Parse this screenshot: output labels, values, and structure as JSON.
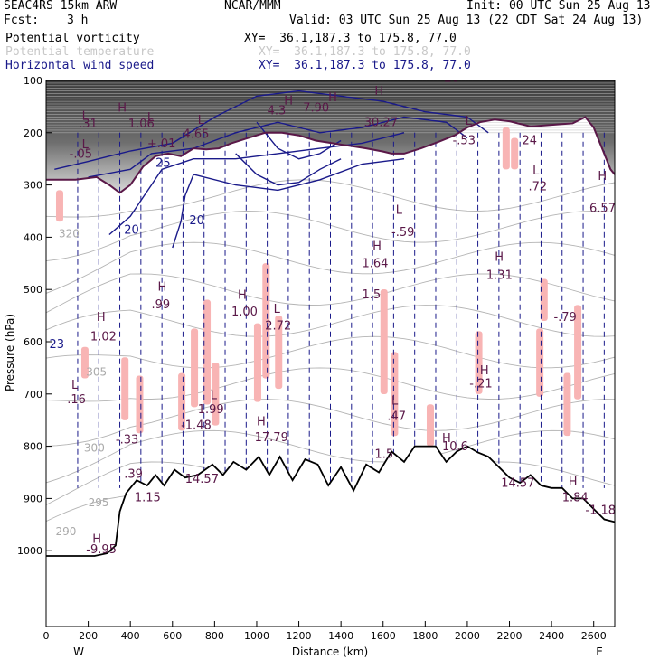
{
  "header": {
    "model": "SEAC4RS 15km ARW",
    "institution": "NCAR/MMM",
    "init": "Init: 00 UTC Sun 25 Aug 13",
    "fcst_label": "Fcst:",
    "fcst_value": "3 h",
    "valid": "Valid: 03 UTC Sun 25 Aug 13 (22 CDT Sat 24 Aug 13)"
  },
  "legend": [
    {
      "name": "Potential vorticity",
      "xy": "XY=  36.1,187.3 to 175.8, 77.0",
      "color": "#000000"
    },
    {
      "name": "Potential temperature",
      "xy": "XY=  36.1,187.3 to 175.8, 77.0",
      "color": "#c8c8c8"
    },
    {
      "name": "Horizontal wind speed",
      "xy": "XY=  36.1,187.3 to 175.8, 77.0",
      "color": "#1a1a8a"
    }
  ],
  "colors": {
    "pv_fill_high": "#3a3a3a",
    "pv_fill_mid": "#9a9a9a",
    "pv_pink": "#f8b4b4",
    "pv_contour": "#5a1848",
    "pv_label": "#5a1848",
    "theta": "#b4b4b4",
    "wind": "#1a1a8a",
    "terrain": "#000000"
  },
  "chart_data": {
    "type": "cross-section",
    "xlabel": "Distance (km)",
    "ylabel": "Pressure (hPa)",
    "xlim": [
      0,
      2700
    ],
    "ylim": [
      1050,
      100
    ],
    "x_ticks": [
      0,
      200,
      400,
      600,
      800,
      1000,
      1200,
      1400,
      1600,
      1800,
      2000,
      2200,
      2400,
      2600
    ],
    "y_ticks": [
      100,
      200,
      300,
      400,
      500,
      600,
      700,
      800,
      900,
      1000
    ],
    "x_end_labels": {
      "left": "W",
      "right": "E"
    },
    "terrain_surface": [
      [
        0,
        1010
      ],
      [
        230,
        1010
      ],
      [
        290,
        1005
      ],
      [
        330,
        990
      ],
      [
        350,
        925
      ],
      [
        380,
        890
      ],
      [
        430,
        865
      ],
      [
        480,
        875
      ],
      [
        520,
        855
      ],
      [
        560,
        875
      ],
      [
        610,
        845
      ],
      [
        660,
        860
      ],
      [
        720,
        855
      ],
      [
        790,
        835
      ],
      [
        840,
        855
      ],
      [
        890,
        830
      ],
      [
        950,
        845
      ],
      [
        1010,
        820
      ],
      [
        1060,
        855
      ],
      [
        1110,
        820
      ],
      [
        1170,
        865
      ],
      [
        1230,
        825
      ],
      [
        1290,
        835
      ],
      [
        1340,
        875
      ],
      [
        1400,
        840
      ],
      [
        1460,
        885
      ],
      [
        1520,
        835
      ],
      [
        1580,
        850
      ],
      [
        1640,
        810
      ],
      [
        1700,
        830
      ],
      [
        1750,
        800
      ],
      [
        1800,
        800
      ],
      [
        1850,
        800
      ],
      [
        1900,
        830
      ],
      [
        1950,
        810
      ],
      [
        2000,
        800
      ],
      [
        2050,
        812
      ],
      [
        2100,
        820
      ],
      [
        2150,
        840
      ],
      [
        2200,
        860
      ],
      [
        2250,
        870
      ],
      [
        2300,
        855
      ],
      [
        2350,
        875
      ],
      [
        2400,
        880
      ],
      [
        2450,
        880
      ],
      [
        2500,
        900
      ],
      [
        2550,
        900
      ],
      [
        2600,
        920
      ],
      [
        2650,
        940
      ],
      [
        2700,
        945
      ]
    ],
    "tropopause_pv": [
      [
        0,
        290
      ],
      [
        80,
        290
      ],
      [
        140,
        290
      ],
      [
        240,
        285
      ],
      [
        300,
        300
      ],
      [
        350,
        315
      ],
      [
        400,
        300
      ],
      [
        460,
        265
      ],
      [
        520,
        245
      ],
      [
        580,
        240
      ],
      [
        640,
        245
      ],
      [
        700,
        230
      ],
      [
        760,
        232
      ],
      [
        820,
        230
      ],
      [
        880,
        220
      ],
      [
        960,
        210
      ],
      [
        1040,
        200
      ],
      [
        1120,
        200
      ],
      [
        1200,
        205
      ],
      [
        1280,
        215
      ],
      [
        1360,
        220
      ],
      [
        1440,
        225
      ],
      [
        1520,
        230
      ],
      [
        1600,
        236
      ],
      [
        1640,
        240
      ],
      [
        1700,
        240
      ],
      [
        1780,
        230
      ],
      [
        1860,
        218
      ],
      [
        1940,
        205
      ],
      [
        2000,
        190
      ],
      [
        2060,
        180
      ],
      [
        2130,
        175
      ],
      [
        2200,
        178
      ],
      [
        2300,
        188
      ],
      [
        2400,
        185
      ],
      [
        2500,
        182
      ],
      [
        2560,
        170
      ],
      [
        2600,
        190
      ],
      [
        2640,
        230
      ],
      [
        2680,
        270
      ],
      [
        2700,
        280
      ]
    ],
    "theta_contour_labels": [
      {
        "text": "320",
        "x": 60,
        "p": 400
      },
      {
        "text": "305",
        "x": 190,
        "p": 665
      },
      {
        "text": "300",
        "x": 180,
        "p": 810
      },
      {
        "text": "295",
        "x": 200,
        "p": 915
      },
      {
        "text": "290",
        "x": 45,
        "p": 970
      }
    ],
    "wind_speed_labels": [
      {
        "text": "25",
        "x": 520,
        "p": 265
      },
      {
        "text": "20",
        "x": 370,
        "p": 393
      },
      {
        "text": "20",
        "x": 680,
        "p": 375
      },
      {
        "text": "23",
        "x": 15,
        "p": 612
      }
    ],
    "pv_labels": [
      {
        "text": "L",
        "x": 170,
        "p": 175
      },
      {
        "text": ".31",
        "x": 155,
        "p": 190
      },
      {
        "text": "H",
        "x": 340,
        "p": 160
      },
      {
        "text": "1.06",
        "x": 390,
        "p": 190
      },
      {
        "text": "L",
        "x": 480,
        "p": 178
      },
      {
        "text": "+.01",
        "x": 480,
        "p": 228
      },
      {
        "text": "L",
        "x": 170,
        "p": 230
      },
      {
        "text": "-.05",
        "x": 110,
        "p": 248
      },
      {
        "text": "L",
        "x": 720,
        "p": 183
      },
      {
        "text": "4.65",
        "x": 650,
        "p": 210
      },
      {
        "text": "H",
        "x": 1130,
        "p": 146
      },
      {
        "text": "4.3",
        "x": 1050,
        "p": 165
      },
      {
        "text": "H",
        "x": 1340,
        "p": 140
      },
      {
        "text": "7.90",
        "x": 1220,
        "p": 160
      },
      {
        "text": "H",
        "x": 1560,
        "p": 128
      },
      {
        "text": "30.27",
        "x": 1510,
        "p": 187
      },
      {
        "text": "26",
        "x": 1890,
        "p": 103
      },
      {
        "text": "L",
        "x": 1990,
        "p": 185
      },
      {
        "text": "-.53",
        "x": 1930,
        "p": 222
      },
      {
        "text": "24",
        "x": 2260,
        "p": 222
      },
      {
        "text": "L",
        "x": 2310,
        "p": 280
      },
      {
        "text": ".72",
        "x": 2290,
        "p": 310
      },
      {
        "text": "H",
        "x": 2620,
        "p": 290
      },
      {
        "text": "6.57",
        "x": 2580,
        "p": 352
      },
      {
        "text": "L",
        "x": 1660,
        "p": 355
      },
      {
        "text": "-.59",
        "x": 1640,
        "p": 398
      },
      {
        "text": "H",
        "x": 1550,
        "p": 424
      },
      {
        "text": "1.64",
        "x": 1500,
        "p": 457
      },
      {
        "text": "1.5",
        "x": 1500,
        "p": 517
      },
      {
        "text": "H",
        "x": 2130,
        "p": 445
      },
      {
        "text": "1.31",
        "x": 2090,
        "p": 480
      },
      {
        "text": "H",
        "x": 530,
        "p": 502
      },
      {
        "text": ".99",
        "x": 500,
        "p": 536
      },
      {
        "text": "H",
        "x": 910,
        "p": 518
      },
      {
        "text": "1.00",
        "x": 880,
        "p": 550
      },
      {
        "text": "L",
        "x": 1080,
        "p": 545
      },
      {
        "text": "2.72",
        "x": 1040,
        "p": 577
      },
      {
        "text": "H",
        "x": 240,
        "p": 560
      },
      {
        "text": "1.02",
        "x": 210,
        "p": 597
      },
      {
        "text": "-.79",
        "x": 2410,
        "p": 560
      },
      {
        "text": "H",
        "x": 2060,
        "p": 662
      },
      {
        "text": "-.21",
        "x": 2010,
        "p": 687
      },
      {
        "text": "L",
        "x": 120,
        "p": 690
      },
      {
        "text": ".16",
        "x": 100,
        "p": 718
      },
      {
        "text": "L",
        "x": 780,
        "p": 710
      },
      {
        "text": "-1.99",
        "x": 700,
        "p": 737
      },
      {
        "text": "-1.48",
        "x": 640,
        "p": 767
      },
      {
        "text": "H",
        "x": 1000,
        "p": 760
      },
      {
        "text": "17.79",
        "x": 990,
        "p": 790
      },
      {
        "text": "L",
        "x": 1640,
        "p": 720
      },
      {
        "text": ".47",
        "x": 1620,
        "p": 750
      },
      {
        "text": "-.33",
        "x": 330,
        "p": 795
      },
      {
        "text": "H",
        "x": 1880,
        "p": 792
      },
      {
        "text": "10.6",
        "x": 1880,
        "p": 808
      },
      {
        "text": "1.5",
        "x": 1560,
        "p": 822
      },
      {
        "text": ".39",
        "x": 370,
        "p": 860
      },
      {
        "text": "14.57",
        "x": 660,
        "p": 870
      },
      {
        "text": "14.57",
        "x": 2160,
        "p": 878
      },
      {
        "text": "H",
        "x": 2480,
        "p": 875
      },
      {
        "text": "1.84",
        "x": 2450,
        "p": 905
      },
      {
        "text": "-1.18",
        "x": 2560,
        "p": 930
      },
      {
        "text": "H",
        "x": 220,
        "p": 985
      },
      {
        "text": "-9.95",
        "x": 190,
        "p": 1005
      },
      {
        "text": "1.15",
        "x": 420,
        "p": 905
      }
    ]
  }
}
